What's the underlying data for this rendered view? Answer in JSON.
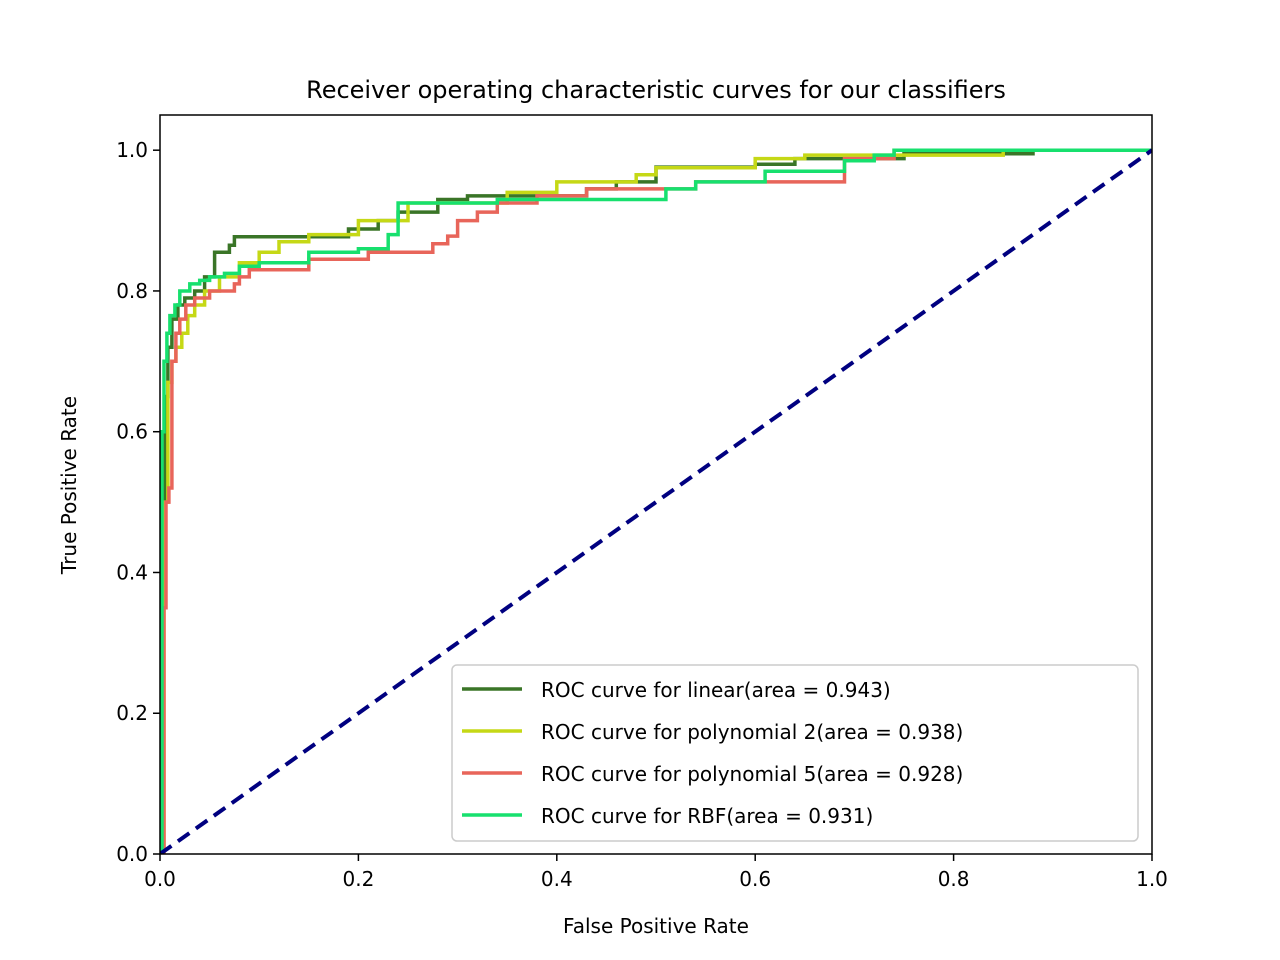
{
  "chart_data": {
    "type": "line",
    "title": "Receiver operating characteristic curves for our classifiers",
    "xlabel": "False Positive Rate",
    "ylabel": "True Positive Rate",
    "xlim": [
      0.0,
      1.0
    ],
    "ylim": [
      0.0,
      1.05
    ],
    "xticks": [
      "0.0",
      "0.2",
      "0.4",
      "0.6",
      "0.8",
      "1.0"
    ],
    "yticks": [
      "0.0",
      "0.2",
      "0.4",
      "0.6",
      "0.8",
      "1.0"
    ],
    "grid": false,
    "legend_position": "lower-right",
    "series": [
      {
        "name": "ROC curve for linear(area = 0.943)",
        "color": "#3a7527",
        "x": [
          0.0,
          0.003,
          0.003,
          0.005,
          0.005,
          0.008,
          0.008,
          0.012,
          0.012,
          0.018,
          0.018,
          0.025,
          0.025,
          0.035,
          0.035,
          0.045,
          0.045,
          0.055,
          0.055,
          0.07,
          0.07,
          0.075,
          0.075,
          0.15,
          0.15,
          0.19,
          0.19,
          0.22,
          0.22,
          0.24,
          0.24,
          0.28,
          0.28,
          0.31,
          0.31,
          0.43,
          0.43,
          0.46,
          0.46,
          0.5,
          0.5,
          0.6,
          0.6,
          0.64,
          0.64,
          0.75,
          0.75,
          0.88,
          0.88,
          1.0
        ],
        "y": [
          0.0,
          0.0,
          0.45,
          0.45,
          0.65,
          0.65,
          0.72,
          0.72,
          0.76,
          0.76,
          0.78,
          0.78,
          0.79,
          0.79,
          0.8,
          0.8,
          0.82,
          0.82,
          0.855,
          0.855,
          0.865,
          0.865,
          0.877,
          0.877,
          0.877,
          0.877,
          0.888,
          0.888,
          0.9,
          0.9,
          0.912,
          0.912,
          0.93,
          0.93,
          0.935,
          0.935,
          0.945,
          0.945,
          0.955,
          0.955,
          0.976,
          0.976,
          0.98,
          0.98,
          0.988,
          0.988,
          0.995,
          0.995,
          1.0,
          1.0
        ]
      },
      {
        "name": "ROC curve for polynomial 2(area = 0.938)",
        "color": "#c5d816",
        "x": [
          0.0,
          0.004,
          0.004,
          0.008,
          0.008,
          0.012,
          0.012,
          0.016,
          0.016,
          0.022,
          0.022,
          0.028,
          0.028,
          0.035,
          0.035,
          0.045,
          0.045,
          0.06,
          0.06,
          0.08,
          0.08,
          0.1,
          0.1,
          0.12,
          0.12,
          0.15,
          0.15,
          0.2,
          0.2,
          0.25,
          0.25,
          0.35,
          0.35,
          0.4,
          0.4,
          0.48,
          0.48,
          0.5,
          0.5,
          0.6,
          0.6,
          0.65,
          0.65,
          0.85,
          0.85,
          1.0
        ],
        "y": [
          0.0,
          0.0,
          0.5,
          0.5,
          0.67,
          0.67,
          0.7,
          0.7,
          0.72,
          0.72,
          0.74,
          0.74,
          0.765,
          0.765,
          0.78,
          0.78,
          0.8,
          0.8,
          0.82,
          0.82,
          0.84,
          0.84,
          0.855,
          0.855,
          0.87,
          0.87,
          0.88,
          0.88,
          0.9,
          0.9,
          0.925,
          0.925,
          0.94,
          0.94,
          0.955,
          0.955,
          0.965,
          0.965,
          0.975,
          0.975,
          0.988,
          0.988,
          0.993,
          0.993,
          1.0,
          1.0
        ]
      },
      {
        "name": "ROC curve for polynomial 5(area = 0.928)",
        "color": "#e8655a",
        "x": [
          0.0,
          0.004,
          0.004,
          0.006,
          0.006,
          0.009,
          0.009,
          0.012,
          0.012,
          0.016,
          0.016,
          0.02,
          0.02,
          0.026,
          0.026,
          0.035,
          0.035,
          0.05,
          0.05,
          0.075,
          0.075,
          0.08,
          0.08,
          0.09,
          0.09,
          0.15,
          0.15,
          0.21,
          0.21,
          0.275,
          0.275,
          0.29,
          0.29,
          0.3,
          0.3,
          0.32,
          0.32,
          0.34,
          0.34,
          0.38,
          0.38,
          0.43,
          0.43,
          0.54,
          0.54,
          0.69,
          0.69,
          0.74,
          0.74,
          1.0
        ],
        "y": [
          0.0,
          0.0,
          0.35,
          0.35,
          0.5,
          0.5,
          0.52,
          0.52,
          0.7,
          0.7,
          0.74,
          0.74,
          0.76,
          0.76,
          0.78,
          0.78,
          0.79,
          0.79,
          0.8,
          0.8,
          0.81,
          0.81,
          0.82,
          0.82,
          0.83,
          0.83,
          0.845,
          0.845,
          0.855,
          0.855,
          0.867,
          0.867,
          0.878,
          0.878,
          0.9,
          0.9,
          0.912,
          0.912,
          0.925,
          0.925,
          0.935,
          0.935,
          0.945,
          0.945,
          0.955,
          0.955,
          0.988,
          0.988,
          1.0,
          1.0
        ]
      },
      {
        "name": "ROC curve for RBF(area = 0.931)",
        "color": "#17e06e",
        "x": [
          0.0,
          0.002,
          0.002,
          0.004,
          0.004,
          0.007,
          0.007,
          0.01,
          0.01,
          0.015,
          0.015,
          0.02,
          0.02,
          0.03,
          0.03,
          0.04,
          0.04,
          0.05,
          0.05,
          0.065,
          0.065,
          0.08,
          0.08,
          0.1,
          0.1,
          0.15,
          0.15,
          0.2,
          0.2,
          0.23,
          0.23,
          0.24,
          0.24,
          0.34,
          0.34,
          0.51,
          0.51,
          0.54,
          0.54,
          0.61,
          0.61,
          0.69,
          0.69,
          0.72,
          0.72,
          0.74,
          0.74,
          1.0
        ],
        "y": [
          0.0,
          0.0,
          0.6,
          0.6,
          0.7,
          0.7,
          0.74,
          0.74,
          0.765,
          0.765,
          0.78,
          0.78,
          0.8,
          0.8,
          0.81,
          0.81,
          0.815,
          0.815,
          0.82,
          0.82,
          0.825,
          0.825,
          0.835,
          0.835,
          0.84,
          0.84,
          0.855,
          0.855,
          0.86,
          0.86,
          0.88,
          0.88,
          0.925,
          0.925,
          0.93,
          0.93,
          0.945,
          0.945,
          0.955,
          0.955,
          0.97,
          0.97,
          0.985,
          0.985,
          0.993,
          0.993,
          1.0,
          1.0
        ]
      }
    ],
    "reference_line": {
      "x": [
        0.0,
        1.0
      ],
      "y": [
        0.0,
        1.0
      ],
      "color": "#000080",
      "style": "dashed"
    }
  }
}
